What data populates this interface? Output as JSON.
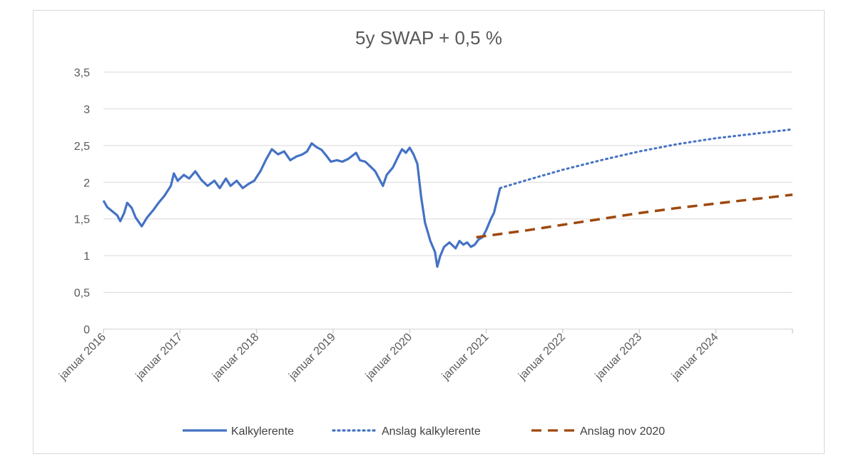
{
  "chart_data": {
    "type": "line",
    "title": "5y SWAP + 0,5 %",
    "xlabel": "",
    "ylabel": "",
    "ylim": [
      0,
      3.5
    ],
    "xlim": [
      2016.0,
      2025.0
    ],
    "y_ticks": [
      "0",
      "0,5",
      "1",
      "1,5",
      "2",
      "2,5",
      "3",
      "3,5"
    ],
    "x_ticks": [
      {
        "label": "januar 2016",
        "value": 2016.0
      },
      {
        "label": "januar 2017",
        "value": 2017.0
      },
      {
        "label": "januar 2018",
        "value": 2018.0
      },
      {
        "label": "januar 2019",
        "value": 2019.0
      },
      {
        "label": "januar 2020",
        "value": 2020.0
      },
      {
        "label": "januar 2021",
        "value": 2021.0
      },
      {
        "label": "januar 2022",
        "value": 2022.0
      },
      {
        "label": "januar 2023",
        "value": 2023.0
      },
      {
        "label": "januar 2024",
        "value": 2024.0
      }
    ],
    "grid": true,
    "legend_position": "bottom",
    "series": [
      {
        "name": "Kalkylerente",
        "style": "solid",
        "color": "#4472C4",
        "points": [
          [
            2016.0,
            1.75
          ],
          [
            2016.05,
            1.66
          ],
          [
            2016.12,
            1.6
          ],
          [
            2016.18,
            1.55
          ],
          [
            2016.22,
            1.47
          ],
          [
            2016.27,
            1.58
          ],
          [
            2016.31,
            1.72
          ],
          [
            2016.37,
            1.65
          ],
          [
            2016.42,
            1.52
          ],
          [
            2016.5,
            1.4
          ],
          [
            2016.57,
            1.52
          ],
          [
            2016.65,
            1.62
          ],
          [
            2016.72,
            1.72
          ],
          [
            2016.8,
            1.82
          ],
          [
            2016.88,
            1.95
          ],
          [
            2016.92,
            2.12
          ],
          [
            2016.97,
            2.02
          ],
          [
            2017.05,
            2.1
          ],
          [
            2017.12,
            2.05
          ],
          [
            2017.2,
            2.15
          ],
          [
            2017.28,
            2.03
          ],
          [
            2017.36,
            1.95
          ],
          [
            2017.45,
            2.02
          ],
          [
            2017.52,
            1.92
          ],
          [
            2017.6,
            2.05
          ],
          [
            2017.66,
            1.95
          ],
          [
            2017.74,
            2.02
          ],
          [
            2017.82,
            1.92
          ],
          [
            2017.9,
            1.98
          ],
          [
            2017.97,
            2.02
          ],
          [
            2018.05,
            2.15
          ],
          [
            2018.12,
            2.3
          ],
          [
            2018.2,
            2.45
          ],
          [
            2018.28,
            2.38
          ],
          [
            2018.36,
            2.42
          ],
          [
            2018.44,
            2.3
          ],
          [
            2018.52,
            2.35
          ],
          [
            2018.6,
            2.38
          ],
          [
            2018.66,
            2.42
          ],
          [
            2018.72,
            2.53
          ],
          [
            2018.78,
            2.48
          ],
          [
            2018.85,
            2.44
          ],
          [
            2018.92,
            2.35
          ],
          [
            2018.97,
            2.28
          ],
          [
            2019.05,
            2.3
          ],
          [
            2019.12,
            2.28
          ],
          [
            2019.2,
            2.32
          ],
          [
            2019.3,
            2.4
          ],
          [
            2019.35,
            2.3
          ],
          [
            2019.42,
            2.28
          ],
          [
            2019.5,
            2.2
          ],
          [
            2019.55,
            2.15
          ],
          [
            2019.6,
            2.05
          ],
          [
            2019.65,
            1.95
          ],
          [
            2019.7,
            2.1
          ],
          [
            2019.78,
            2.2
          ],
          [
            2019.85,
            2.35
          ],
          [
            2019.9,
            2.45
          ],
          [
            2019.95,
            2.4
          ],
          [
            2020.0,
            2.47
          ],
          [
            2020.05,
            2.38
          ],
          [
            2020.1,
            2.25
          ],
          [
            2020.15,
            1.8
          ],
          [
            2020.2,
            1.45
          ],
          [
            2020.27,
            1.2
          ],
          [
            2020.33,
            1.05
          ],
          [
            2020.36,
            0.85
          ],
          [
            2020.4,
            1.0
          ],
          [
            2020.45,
            1.12
          ],
          [
            2020.52,
            1.18
          ],
          [
            2020.6,
            1.1
          ],
          [
            2020.65,
            1.2
          ],
          [
            2020.7,
            1.15
          ],
          [
            2020.75,
            1.18
          ],
          [
            2020.8,
            1.12
          ],
          [
            2020.85,
            1.15
          ],
          [
            2020.9,
            1.22
          ],
          [
            2020.95,
            1.25
          ],
          [
            2021.0,
            1.35
          ],
          [
            2021.06,
            1.5
          ],
          [
            2021.1,
            1.58
          ],
          [
            2021.14,
            1.75
          ],
          [
            2021.18,
            1.92
          ]
        ]
      },
      {
        "name": "Anslag kalkylerente",
        "style": "dotted",
        "color": "#4472C4",
        "points": [
          [
            2021.18,
            1.92
          ],
          [
            2021.5,
            2.02
          ],
          [
            2022.0,
            2.17
          ],
          [
            2022.5,
            2.3
          ],
          [
            2023.0,
            2.42
          ],
          [
            2023.5,
            2.52
          ],
          [
            2024.0,
            2.6
          ],
          [
            2024.5,
            2.66
          ],
          [
            2025.0,
            2.72
          ]
        ]
      },
      {
        "name": "Anslag nov 2020",
        "style": "dashed",
        "color": "#9E480E",
        "points": [
          [
            2020.87,
            1.25
          ],
          [
            2021.0,
            1.27
          ],
          [
            2021.5,
            1.34
          ],
          [
            2022.0,
            1.42
          ],
          [
            2022.5,
            1.5
          ],
          [
            2023.0,
            1.58
          ],
          [
            2023.5,
            1.65
          ],
          [
            2024.0,
            1.71
          ],
          [
            2024.5,
            1.77
          ],
          [
            2025.0,
            1.83
          ]
        ]
      }
    ]
  }
}
